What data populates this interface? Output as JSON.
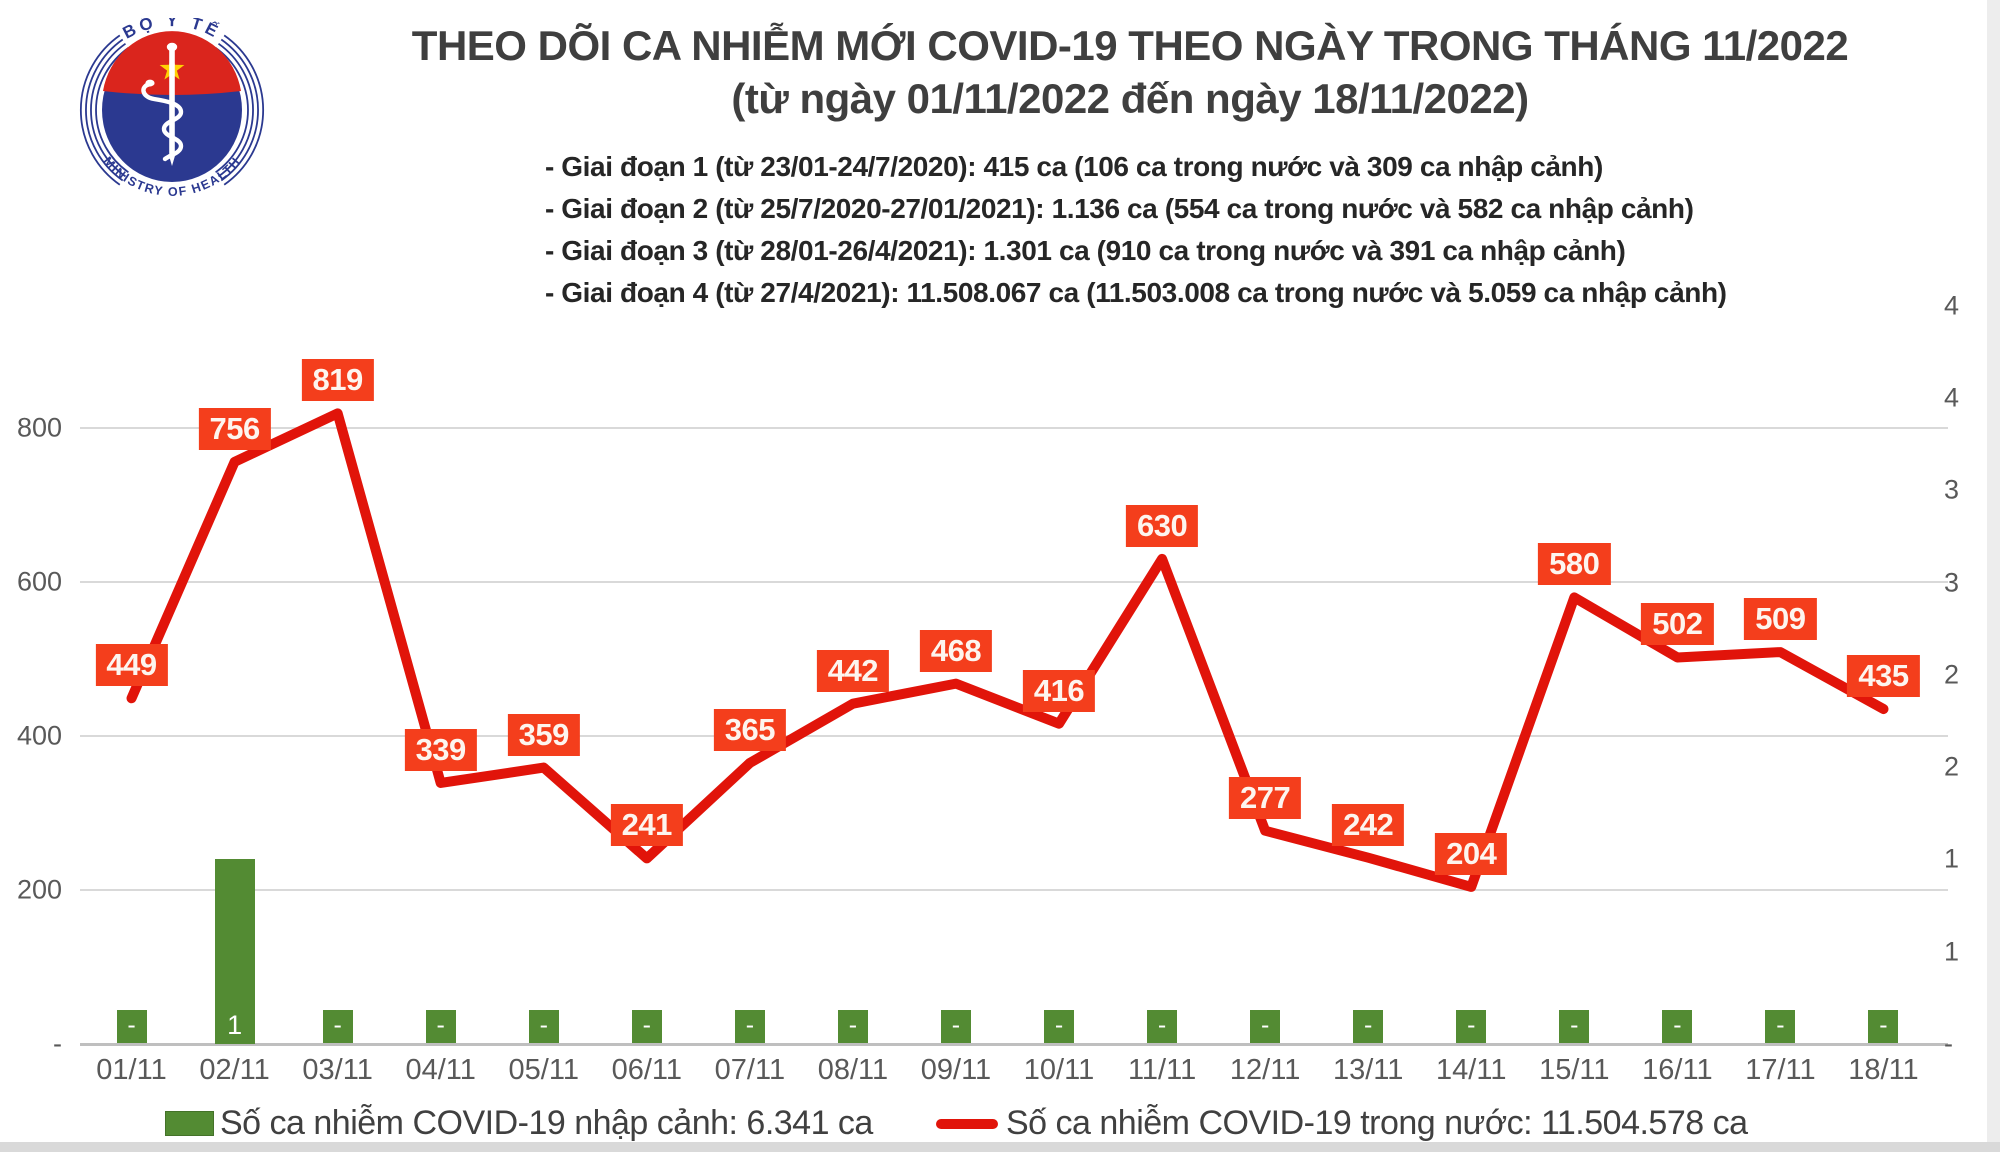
{
  "logo": {
    "top_text": "BỘ Y TẾ",
    "bottom_text": "MINISTRY OF HEALTH",
    "colors": {
      "blue": "#2b3990",
      "red": "#da251d",
      "star_yellow": "#ffd103"
    }
  },
  "header": {
    "title": "THEO DÕI CA NHIỄM MỚI COVID-19 THEO NGÀY TRONG THÁNG 11/2022",
    "subtitle": "(từ ngày 01/11/2022 đến ngày 18/11/2022)",
    "notes": [
      "- Giai đoạn 1 (từ 23/01-24/7/2020): 415 ca (106 ca trong nước và 309 ca nhập cảnh)",
      "- Giai đoạn 2 (từ 25/7/2020-27/01/2021): 1.136 ca (554 ca trong nước và 582 ca nhập cảnh)",
      "- Giai đoạn 3 (từ 28/01-26/4/2021): 1.301 ca (910 ca trong nước và 391 ca nhập cảnh)",
      "- Giai đoạn 4 (từ 27/4/2021): 11.508.067 ca (11.503.008 ca trong nước và 5.059 ca nhập cảnh)"
    ]
  },
  "chart_data": {
    "type": "line+bar",
    "categories": [
      "01/11",
      "02/11",
      "03/11",
      "04/11",
      "05/11",
      "06/11",
      "07/11",
      "08/11",
      "09/11",
      "10/11",
      "11/11",
      "12/11",
      "13/11",
      "14/11",
      "15/11",
      "16/11",
      "17/11",
      "18/11"
    ],
    "series": [
      {
        "name": "Số ca nhiễm COVID-19 trong nước",
        "type": "line",
        "axis": "left",
        "color": "#e1140a",
        "label_bg": "#f43e1c",
        "values": [
          449,
          756,
          819,
          339,
          359,
          241,
          365,
          442,
          468,
          416,
          630,
          277,
          242,
          204,
          580,
          502,
          509,
          435
        ]
      },
      {
        "name": "Số ca nhiễm COVID-19 nhập cảnh",
        "type": "bar",
        "axis": "right",
        "color": "#538b33",
        "values": [
          0,
          1,
          0,
          0,
          0,
          0,
          0,
          0,
          0,
          0,
          0,
          0,
          0,
          0,
          0,
          0,
          0,
          0
        ],
        "zero_label": "-"
      }
    ],
    "left_axis": {
      "min": 0,
      "max": 800,
      "step": 200,
      "tick_labels": [
        "-",
        "200",
        "400",
        "600",
        "800"
      ]
    },
    "right_axis": {
      "min": 0,
      "max": 4,
      "step": 0.5,
      "tick_labels": [
        "-",
        "1",
        "1",
        "2",
        "2",
        "3",
        "3",
        "4",
        "4"
      ]
    },
    "grid": true,
    "legend_position": "bottom",
    "legend": [
      {
        "swatch": "bar",
        "color": "#538b33",
        "label": "Số ca nhiễm COVID-19 nhập cảnh: 6.341 ca"
      },
      {
        "swatch": "line",
        "color": "#e1140a",
        "label": "Số ca nhiễm COVID-19 trong nước: 11.504.578 ca"
      }
    ]
  }
}
